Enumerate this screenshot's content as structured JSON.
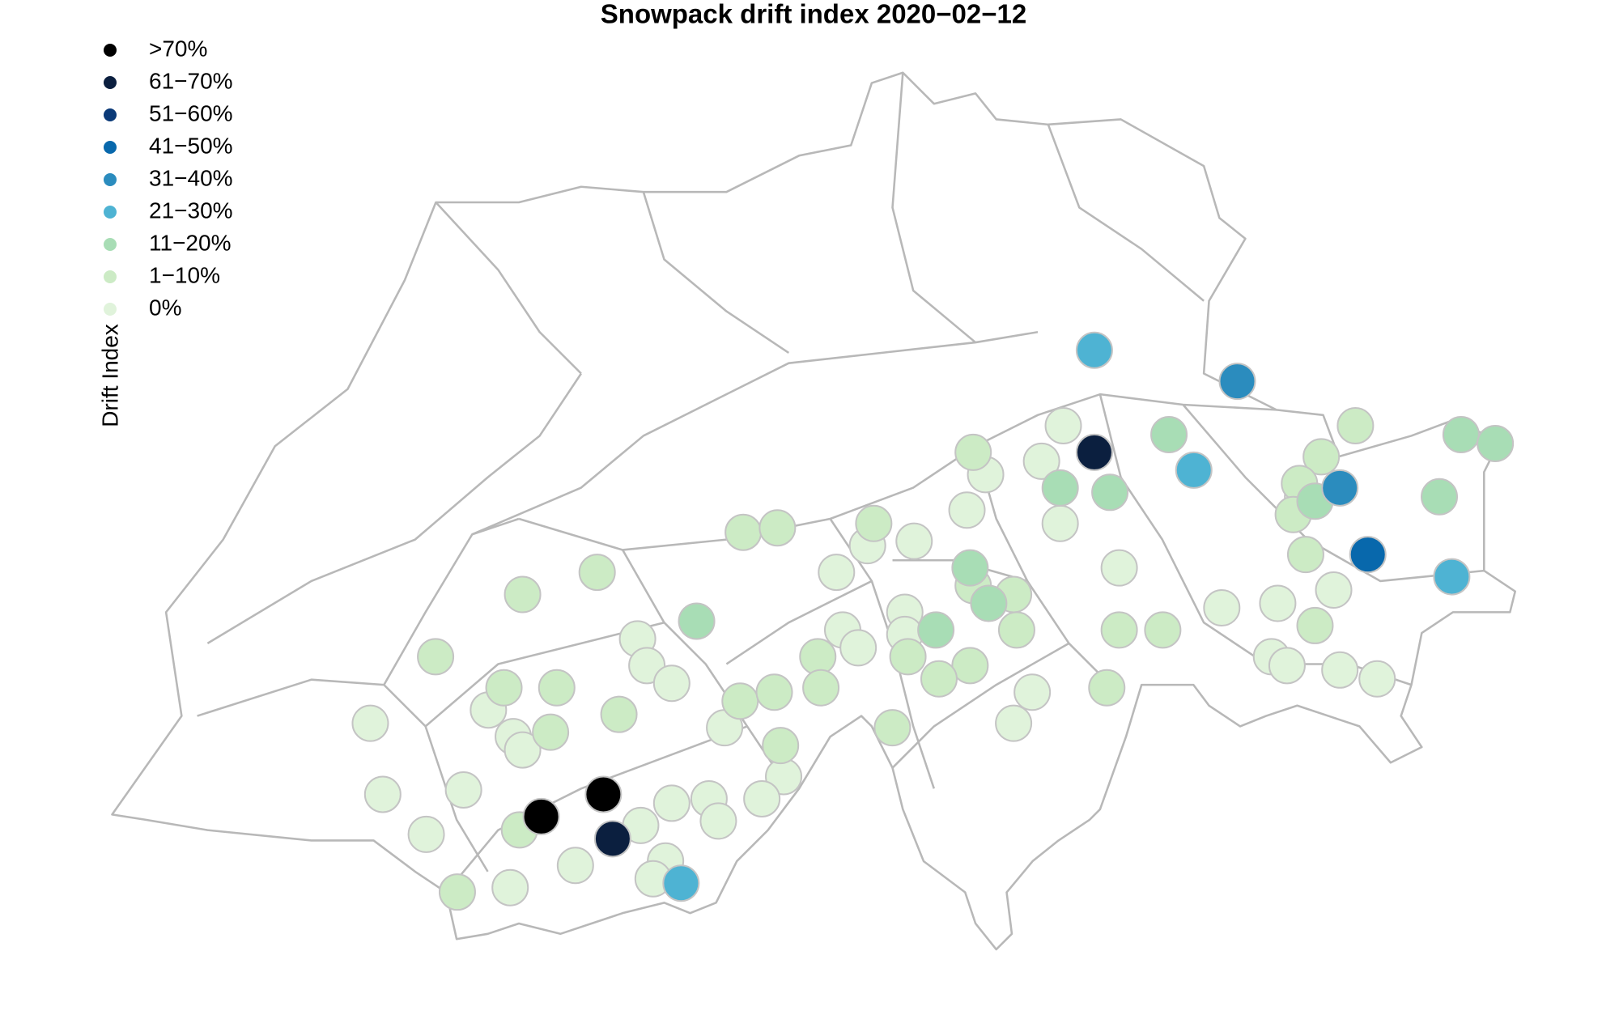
{
  "chart_data": {
    "type": "map",
    "title": "Snowpack drift index 2020−02−12",
    "legend_title": "Drift Index",
    "xlim": [
      5.96,
      10.49
    ],
    "ylim": [
      45.82,
      47.81
    ],
    "series": [
      {
        "name": ">70%",
        "color": "#000000",
        "x": [
          7.55,
          7.35
        ],
        "values": [
          46.18,
          46.13
        ]
      },
      {
        "name": "61−70%",
        "color": "#0b1f3f",
        "x": [
          9.13,
          7.58
        ],
        "values": [
          46.95,
          46.08
        ]
      },
      {
        "name": "51−60%",
        "color": "#0b3a78",
        "x": [],
        "values": []
      },
      {
        "name": "41−50%",
        "color": "#0868ac",
        "x": [
          10.01
        ],
        "values": [
          46.72
        ]
      },
      {
        "name": "31−40%",
        "color": "#2b8cbe",
        "x": [
          9.59,
          9.92
        ],
        "values": [
          47.11,
          46.87
        ]
      },
      {
        "name": "21−30%",
        "color": "#4eb3d3",
        "x": [
          9.13,
          9.45,
          10.28,
          7.8
        ],
        "values": [
          47.18,
          46.91,
          46.67,
          45.98
        ]
      },
      {
        "name": "11−20%",
        "color": "#a8ddb5",
        "x": [
          9.37,
          10.31,
          10.42,
          9.02,
          9.18,
          9.84,
          10.24,
          8.73,
          7.85,
          8.79,
          8.62
        ],
        "values": [
          46.99,
          46.99,
          46.97,
          46.87,
          46.86,
          46.84,
          46.85,
          46.69,
          46.57,
          46.61,
          46.55
        ]
      },
      {
        "name": "1−10%",
        "color": "#ccebc5",
        "x": [
          9.97,
          8.74,
          9.86,
          9.79,
          9.77,
          9.81,
          8.0,
          8.11,
          8.42,
          8.74,
          7.53,
          7.29,
          8.87,
          9.84,
          8.88,
          9.21,
          9.35,
          7.01,
          8.24,
          8.53,
          8.73,
          7.23,
          7.4,
          7.6,
          7.99,
          8.1,
          8.25,
          8.63,
          9.17,
          7.38,
          8.48,
          8.12,
          7.28,
          7.08
        ],
        "values": [
          47.01,
          46.95,
          46.94,
          46.88,
          46.81,
          46.72,
          46.77,
          46.78,
          46.79,
          46.65,
          46.68,
          46.63,
          46.63,
          46.56,
          46.55,
          46.55,
          46.55,
          46.49,
          46.49,
          46.49,
          46.47,
          46.42,
          46.42,
          46.36,
          46.39,
          46.41,
          46.42,
          46.44,
          46.42,
          46.32,
          46.33,
          46.29,
          46.1,
          45.96
        ]
      },
      {
        "name": "0%",
        "color": "#e0f3db",
        "x": [
          9.03,
          8.96,
          8.78,
          9.8,
          8.72,
          9.02,
          8.4,
          8.55,
          8.3,
          9.21,
          8.52,
          9.54,
          9.72,
          9.9,
          8.32,
          8.37,
          8.52,
          7.66,
          7.69,
          7.77,
          9.7,
          9.75,
          9.92,
          10.04,
          7.18,
          8.93,
          6.8,
          7.26,
          7.29,
          7.94,
          8.87,
          8.13,
          6.84,
          7.1,
          7.77,
          7.89,
          8.06,
          7.67,
          7.92,
          6.98,
          7.75,
          7.46,
          7.71,
          7.25
        ],
        "values": [
          47.01,
          46.93,
          46.9,
          46.85,
          46.82,
          46.79,
          46.74,
          46.75,
          46.68,
          46.69,
          46.59,
          46.6,
          46.61,
          46.64,
          46.55,
          46.51,
          46.54,
          46.53,
          46.47,
          46.43,
          46.49,
          46.47,
          46.46,
          46.44,
          46.37,
          46.41,
          46.34,
          46.31,
          46.28,
          46.33,
          46.34,
          46.22,
          46.18,
          46.19,
          46.16,
          46.17,
          46.17,
          46.11,
          46.12,
          46.09,
          46.03,
          46.02,
          45.99,
          45.97
        ]
      }
    ]
  }
}
